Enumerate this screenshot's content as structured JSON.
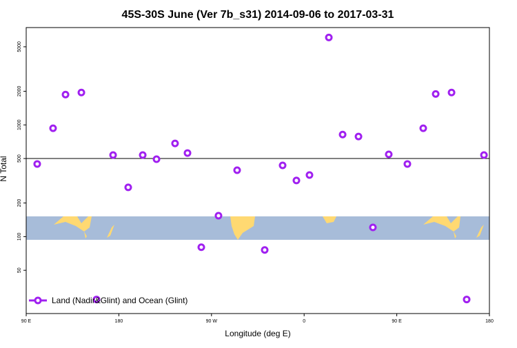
{
  "chart_data": {
    "type": "scatter",
    "title": "45S-30S June (Ver 7b_s31)   2014-09-06 to 2017-03-31",
    "x_label": "Longitude (deg E)",
    "y_label": "N Total",
    "log_y": true,
    "hline": 500,
    "xlim": [
      90,
      540
    ],
    "xticks": [
      {
        "value": 90,
        "label": "90 E"
      },
      180,
      {
        "value": 270,
        "label": "90 W"
      },
      {
        "value": 360,
        "label": "0"
      },
      {
        "value": 450,
        "label": "90 E"
      },
      {
        "value": 540,
        "label": "180"
      }
    ],
    "ylim": [
      20.5,
      7430
    ],
    "yticks": [
      50,
      100,
      200,
      500,
      1000,
      2000,
      5000
    ],
    "legend_position": "bottom-left",
    "series": [
      {
        "name": "Land (Nadir&Glint) and Ocean (Glint)",
        "color": "#a020f0",
        "x": [
          100.7,
          116.1,
          128.2,
          143.6,
          158.3,
          174.4,
          189.1,
          203.2,
          216.6,
          234.6,
          246.7,
          260.1,
          276.8,
          294.9,
          321.7,
          339.1,
          352.5,
          365.2,
          384.0,
          397.4,
          412.8,
          426.8,
          442.2,
          460.3,
          475.7,
          487.8,
          503.2,
          517.9,
          534.7
        ],
        "values": [
          447,
          933,
          1868,
          1950,
          27.4,
          537,
          276,
          537,
          493,
          683,
          560,
          80.4,
          154,
          393,
          76.0,
          434,
          318,
          356,
          6055,
          820,
          787,
          121,
          545,
          447,
          933,
          1892,
          1950,
          27.4,
          537
        ]
      }
    ]
  }
}
